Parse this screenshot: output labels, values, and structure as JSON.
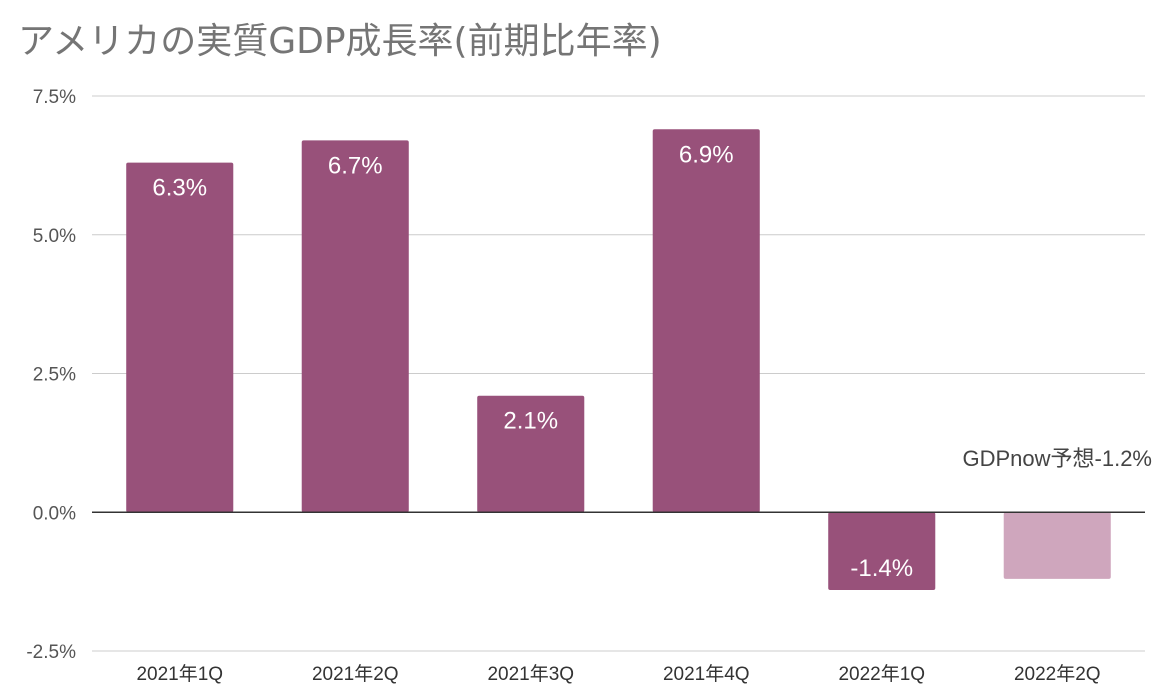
{
  "chart_data": {
    "type": "bar",
    "title": "アメリカの実質GDP成長率(前期比年率)",
    "categories": [
      "2021年1Q",
      "2021年2Q",
      "2021年3Q",
      "2021年4Q",
      "2022年1Q",
      "2022年2Q"
    ],
    "values": [
      6.3,
      6.7,
      2.1,
      6.9,
      -1.4,
      -1.2
    ],
    "data_labels": [
      "6.3%",
      "6.7%",
      "2.1%",
      "6.9%",
      "-1.4%",
      ""
    ],
    "ylim": [
      -2.5,
      7.5
    ],
    "yticks": [
      -2.5,
      0.0,
      2.5,
      5.0,
      7.5
    ],
    "ytick_labels": [
      "-2.5%",
      "0.0%",
      "2.5%",
      "5.0%",
      "7.5%"
    ],
    "grid": true,
    "legend": "none",
    "annotation": "GDPnow予想-1.2%",
    "colors": [
      "#98517a",
      "#98517a",
      "#98517a",
      "#98517a",
      "#98517a",
      "#cfa6bd"
    ],
    "grid_color": "#cccccc",
    "zero_line_color": "#333333"
  }
}
